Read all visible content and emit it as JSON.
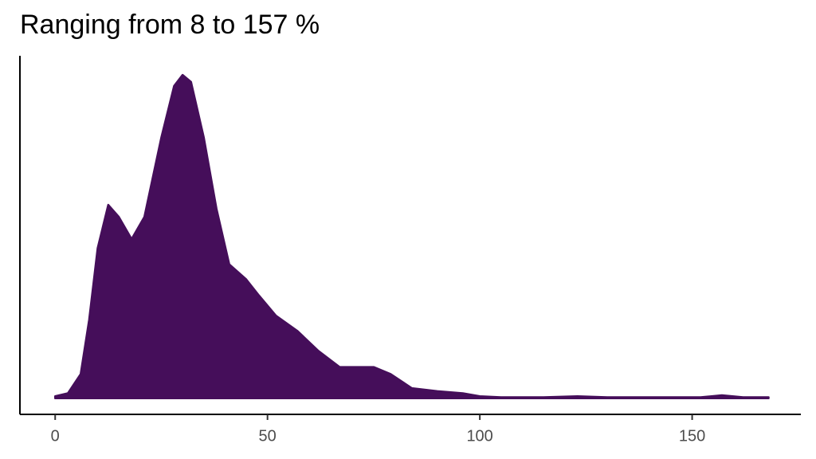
{
  "chart_data": {
    "type": "area",
    "title": "Ranging from 8 to 157 %",
    "x": [
      0,
      3,
      6,
      8,
      10,
      12.5,
      15,
      18,
      21,
      25,
      28,
      30,
      32,
      35,
      38,
      41,
      45,
      48,
      52,
      57,
      62,
      67,
      71,
      75,
      79,
      84,
      90,
      96,
      100,
      105,
      115,
      123,
      130,
      145,
      152,
      157,
      162,
      168
    ],
    "values": [
      0.0002,
      0.0005,
      0.0024,
      0.0078,
      0.0149,
      0.0192,
      0.018,
      0.0158,
      0.018,
      0.0259,
      0.031,
      0.0321,
      0.0314,
      0.0259,
      0.0188,
      0.0133,
      0.0118,
      0.0102,
      0.0082,
      0.0067,
      0.0047,
      0.0031,
      0.0031,
      0.0031,
      0.0024,
      0.001,
      0.0007,
      0.0005,
      0.0002,
      0.0001,
      0.0001,
      0.0002,
      0.0001,
      0.0001,
      0.0001,
      0.0003,
      0.0001,
      0.0001
    ],
    "color": "#450e5a",
    "xlim": [
      -8.3,
      175.6
    ],
    "xticks": [
      0,
      50,
      100,
      150
    ],
    "ylim": [
      -0.0016,
      0.034
    ]
  }
}
